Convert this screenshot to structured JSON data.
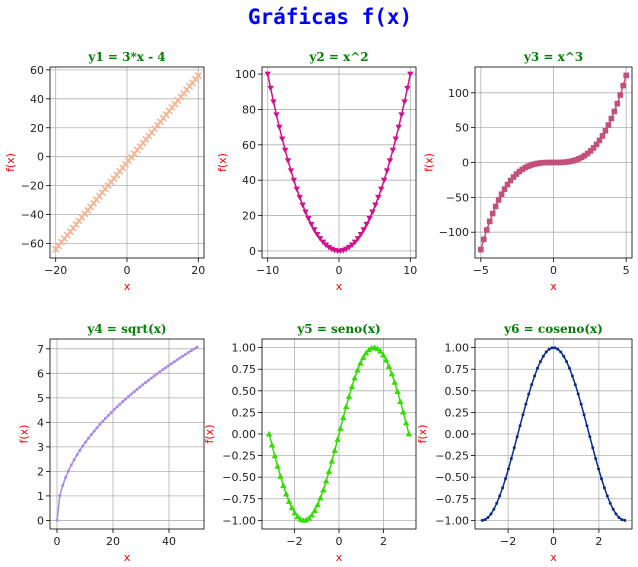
{
  "figure_title": "Gráficas f(x)",
  "colors": {
    "title": "#0000ff",
    "subplot_title": "#008000",
    "axis_label": "#ff0000",
    "grid": "#b0b0b0"
  },
  "chart_data": [
    {
      "type": "line",
      "title": "y1 = 3*x - 4",
      "xlabel": "x",
      "ylabel": "f(x)",
      "function": "3*x-4",
      "xlim": [
        -21.6,
        21.6
      ],
      "ylim": [
        -70,
        62
      ],
      "xticks": [
        -20,
        0,
        20
      ],
      "yticks": [
        -60,
        -40,
        -20,
        0,
        20,
        40,
        60
      ],
      "x_range": [
        -20,
        20
      ],
      "n_points": 50,
      "color": "#f4b393",
      "marker": "x",
      "grid": true
    },
    {
      "type": "line",
      "title": "y2 = x^2",
      "xlabel": "x",
      "ylabel": "f(x)",
      "function": "x^2",
      "xlim": [
        -10.8,
        10.8
      ],
      "ylim": [
        -4,
        104
      ],
      "xticks": [
        -10,
        0,
        10
      ],
      "yticks": [
        0,
        20,
        40,
        60,
        80,
        100
      ],
      "x_range": [
        -10,
        10
      ],
      "n_points": 50,
      "color": "#d0108c",
      "marker": "v",
      "grid": true
    },
    {
      "type": "line",
      "title": "y3 = x^3",
      "xlabel": "x",
      "ylabel": "f(x)",
      "function": "x^3",
      "xlim": [
        -5.4,
        5.4
      ],
      "ylim": [
        -137,
        137
      ],
      "xticks": [
        -5,
        0,
        5
      ],
      "yticks": [
        -100,
        -50,
        0,
        50,
        100
      ],
      "x_range": [
        -5,
        5
      ],
      "n_points": 50,
      "color": "#c2507a",
      "marker": "s",
      "grid": true
    },
    {
      "type": "line",
      "title": "y4 = sqrt(x)",
      "xlabel": "x",
      "ylabel": "f(x)",
      "function": "sqrt(x)",
      "xlim": [
        -2.5,
        52.5
      ],
      "ylim": [
        -0.35,
        7.4
      ],
      "xticks": [
        0,
        20,
        40
      ],
      "yticks": [
        0,
        1,
        2,
        3,
        4,
        5,
        6,
        7
      ],
      "x_range": [
        0,
        50
      ],
      "n_points": 50,
      "color": "#a78be8",
      "marker": ".",
      "grid": true
    },
    {
      "type": "line",
      "title": "y5 = seno(x)",
      "xlabel": "x",
      "ylabel": "f(x)",
      "function": "sin(x)",
      "xlim": [
        -3.46,
        3.46
      ],
      "ylim": [
        -1.1,
        1.1
      ],
      "xticks": [
        -2,
        0,
        2
      ],
      "yticks": [
        -1.0,
        -0.75,
        -0.5,
        -0.25,
        0.0,
        0.25,
        0.5,
        0.75,
        1.0
      ],
      "x_range": [
        -3.14159,
        3.14159
      ],
      "n_points": 50,
      "color": "#33dd00",
      "marker": "^",
      "grid": true
    },
    {
      "type": "line",
      "title": "y6 = coseno(x)",
      "xlabel": "x",
      "ylabel": "f(x)",
      "function": "cos(x)",
      "xlim": [
        -3.46,
        3.46
      ],
      "ylim": [
        -1.1,
        1.1
      ],
      "xticks": [
        -2,
        0,
        2
      ],
      "yticks": [
        -1.0,
        -0.75,
        -0.5,
        -0.25,
        0.0,
        0.25,
        0.5,
        0.75,
        1.0
      ],
      "x_range": [
        -3.14159,
        3.14159
      ],
      "n_points": 50,
      "color": "#0a2d8c",
      "marker": ".",
      "grid": true
    }
  ]
}
